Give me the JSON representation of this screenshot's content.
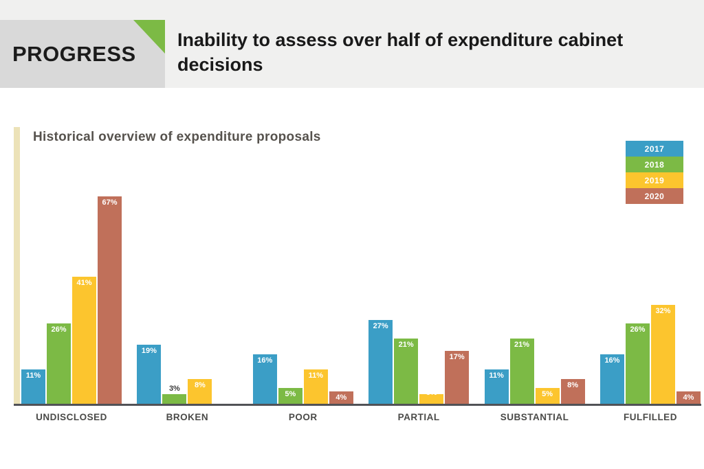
{
  "header": {
    "kicker": "PROGRESS",
    "title": "Inability to assess over half of expenditure cabinet decisions"
  },
  "chart_data": {
    "type": "bar",
    "title": "Historical overview of expenditure proposals",
    "categories": [
      "UNDISCLOSED",
      "BROKEN",
      "POOR",
      "PARTIAL",
      "SUBSTANTIAL",
      "FULFILLED"
    ],
    "series": [
      {
        "name": "2017",
        "color": "#3b9ec6",
        "values": [
          11,
          19,
          16,
          27,
          11,
          16
        ]
      },
      {
        "name": "2018",
        "color": "#7cba45",
        "values": [
          26,
          3,
          5,
          21,
          21,
          26
        ]
      },
      {
        "name": "2019",
        "color": "#fcc52e",
        "values": [
          41,
          8,
          11,
          3,
          5,
          32
        ]
      },
      {
        "name": "2020",
        "color": "#c0705a",
        "values": [
          67,
          null,
          4,
          17,
          8,
          4
        ]
      }
    ],
    "value_suffix": "%",
    "ylim": [
      0,
      90
    ],
    "grid": false,
    "legend_position": "top-right",
    "label_overrides": [
      {
        "series": "2018",
        "category": "BROKEN",
        "position": "above",
        "color": "#3a3a3a"
      },
      {
        "series": "2019",
        "category": "PARTIAL",
        "position": "overlap",
        "color": "#ffffff"
      }
    ],
    "axis_colors": {
      "baseline": "#515256",
      "y_stripe": "#ece2b8"
    }
  }
}
